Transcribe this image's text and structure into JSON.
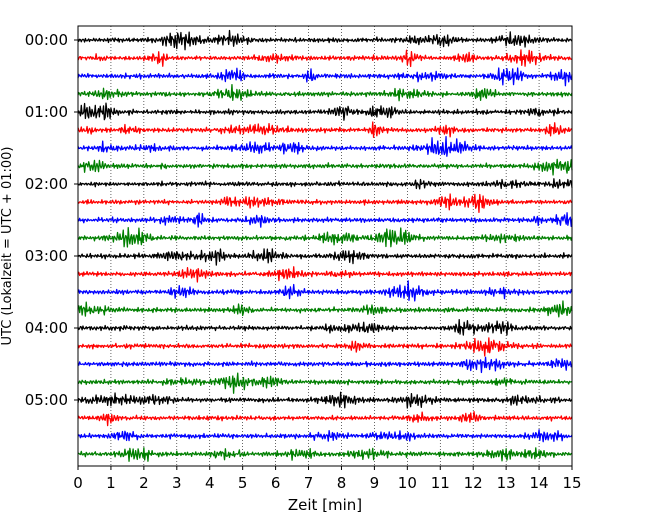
{
  "chart_data": {
    "type": "line",
    "title": "",
    "xlabel": "Zeit  [min]",
    "ylabel": "UTC (Lokalzeit = UTC + 01:00)",
    "xlim": [
      0,
      15
    ],
    "x_ticks": [
      "0",
      "1",
      "2",
      "3",
      "4",
      "5",
      "6",
      "7",
      "8",
      "9",
      "10",
      "11",
      "12",
      "13",
      "14",
      "15"
    ],
    "y_ticks": [
      "00:00",
      "01:00",
      "02:00",
      "03:00",
      "04:00",
      "05:00"
    ],
    "traces_per_hour": 4,
    "trace_minutes": 15,
    "trace_count": 24,
    "trace_colors": [
      "#000000",
      "#ff0000",
      "#0000ff",
      "#007f00"
    ],
    "grid": "vertical dotted at each minute",
    "legend": "none"
  }
}
